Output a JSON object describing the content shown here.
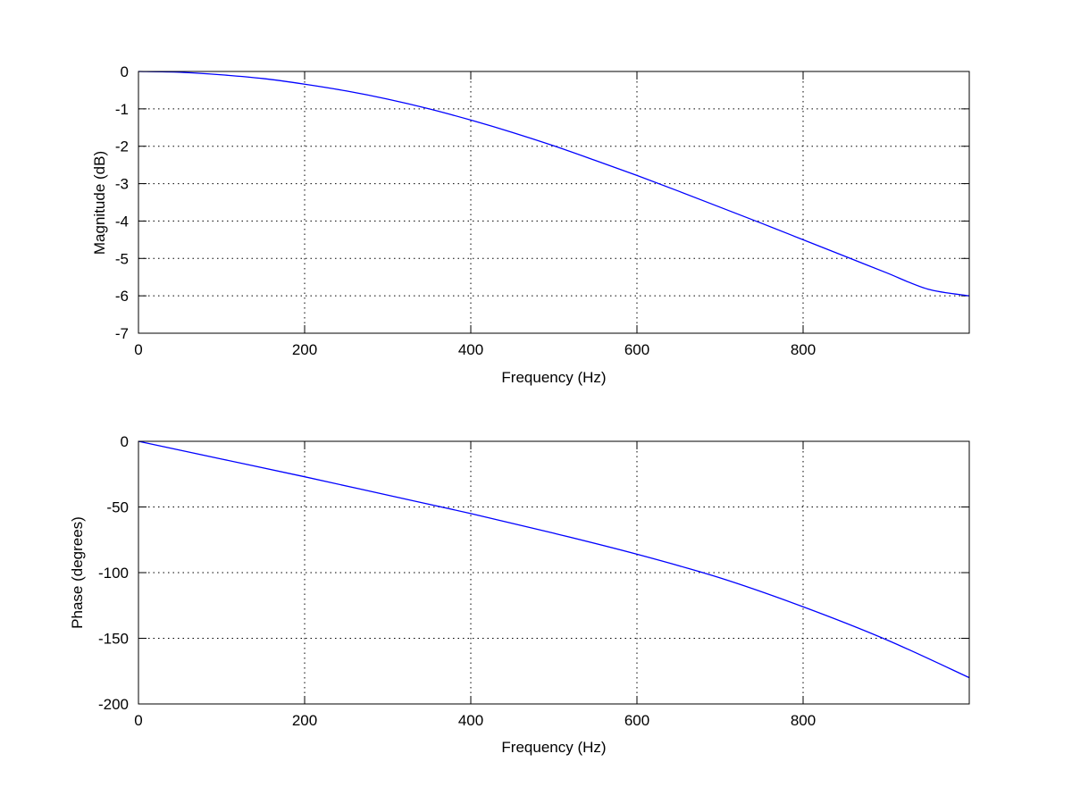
{
  "chart_data": [
    {
      "type": "line",
      "xlabel": "Frequency (Hz)",
      "ylabel": "Magnitude (dB)",
      "xlim": [
        0,
        1000
      ],
      "ylim": [
        -7,
        0
      ],
      "xticks": [
        0,
        200,
        400,
        600,
        800
      ],
      "xtick_labels": [
        "0",
        "200",
        "400",
        "600",
        "800"
      ],
      "yticks": [
        0,
        -1,
        -2,
        -3,
        -4,
        -5,
        -6,
        -7
      ],
      "ytick_labels": [
        "0",
        "-1",
        "-2",
        "-3",
        "-4",
        "-5",
        "-6",
        "-7"
      ],
      "grid": true,
      "color": "#0000ff",
      "x": [
        0,
        50,
        100,
        150,
        200,
        250,
        300,
        350,
        400,
        450,
        500,
        550,
        600,
        650,
        700,
        750,
        800,
        850,
        900,
        950,
        1000
      ],
      "y": [
        0,
        -0.02,
        -0.09,
        -0.19,
        -0.34,
        -0.52,
        -0.74,
        -1.0,
        -1.3,
        -1.63,
        -1.99,
        -2.38,
        -2.78,
        -3.2,
        -3.63,
        -4.06,
        -4.5,
        -4.94,
        -5.38,
        -5.82,
        -6.0
      ]
    },
    {
      "type": "line",
      "xlabel": "Frequency (Hz)",
      "ylabel": "Phase (degrees)",
      "xlim": [
        0,
        1000
      ],
      "ylim": [
        -200,
        0
      ],
      "xticks": [
        0,
        200,
        400,
        600,
        800
      ],
      "xtick_labels": [
        "0",
        "200",
        "400",
        "600",
        "800"
      ],
      "yticks": [
        0,
        -50,
        -100,
        -150,
        -200
      ],
      "ytick_labels": [
        "0",
        "-50",
        "-100",
        "-150",
        "-200"
      ],
      "grid": true,
      "color": "#0000ff",
      "x": [
        0,
        100,
        200,
        300,
        400,
        500,
        600,
        700,
        800,
        900,
        1000
      ],
      "y": [
        0,
        -13.5,
        -27,
        -41,
        -55,
        -70,
        -86,
        -104,
        -126,
        -151,
        -180
      ]
    }
  ]
}
